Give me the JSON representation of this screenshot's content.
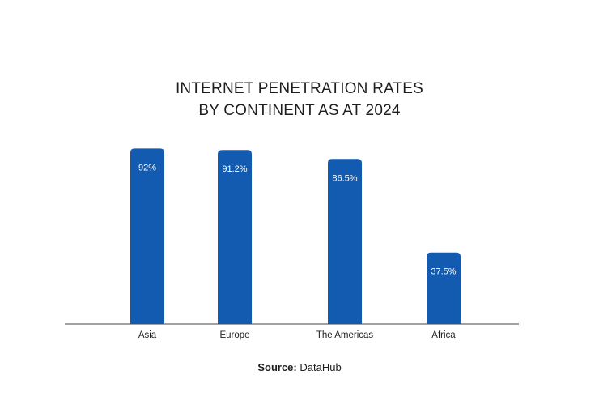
{
  "chart_data": {
    "type": "bar",
    "title_lines": [
      "INTERNET PENETRATION RATES",
      "BY CONTINENT AS AT 2024"
    ],
    "categories": [
      "Asia",
      "Europe",
      "The Americas",
      "Africa"
    ],
    "values": [
      92,
      91.2,
      86.5,
      37.5
    ],
    "value_labels": [
      "92%",
      "91.2%",
      "86.5%",
      "37.5%"
    ],
    "xlabel": "",
    "ylabel": "",
    "ylim": [
      0,
      100
    ],
    "grid": false,
    "legend": "none"
  },
  "source": {
    "label": "Source:",
    "value": "DataHub"
  },
  "colors": {
    "bar": "#135bb1",
    "axis": "#444444",
    "background": "#ffffff"
  }
}
